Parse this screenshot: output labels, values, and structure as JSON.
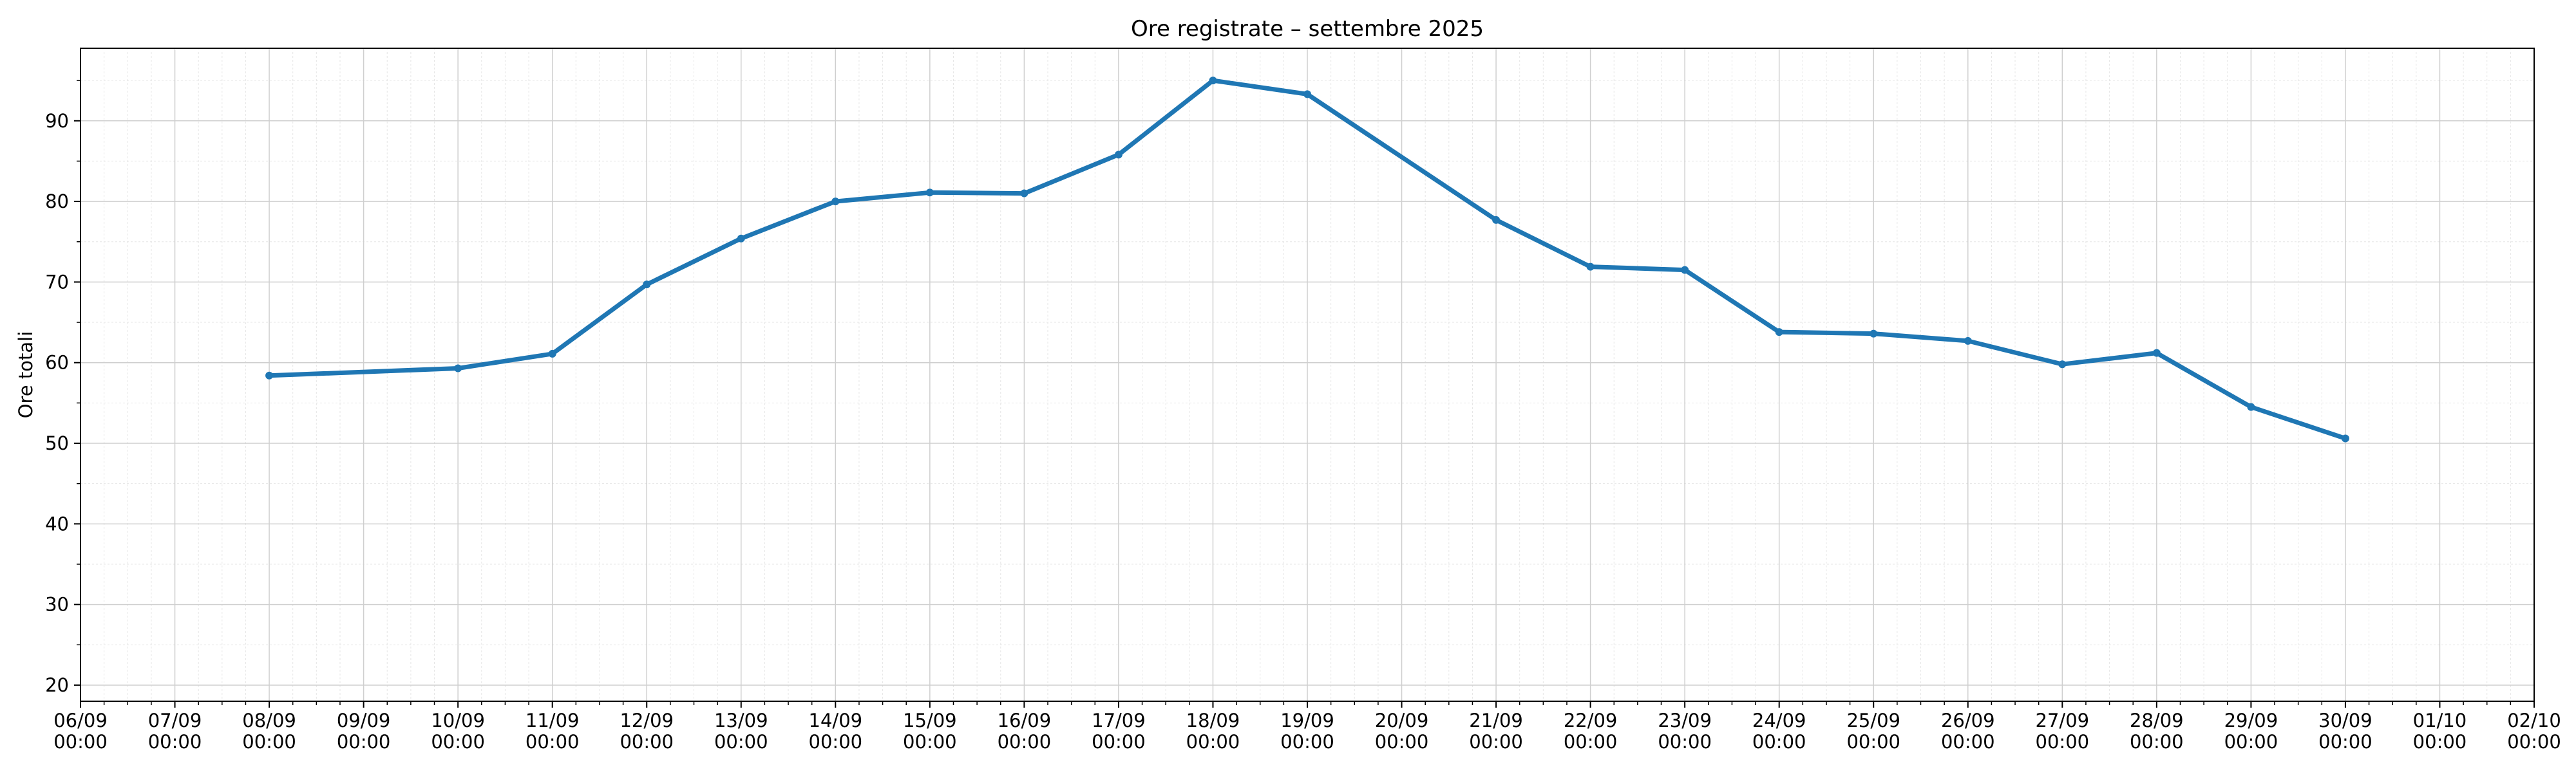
{
  "chart_data": {
    "type": "line",
    "title": "Ore registrate – settembre 2025",
    "xlabel": "",
    "ylabel": "Ore totali",
    "xlim": [
      "2025-09-06",
      "2025-10-02"
    ],
    "ylim": [
      18,
      99
    ],
    "grid": true,
    "minor_grid": true,
    "x_tick_labels": [
      "06/09\n00:00",
      "07/09\n00:00",
      "08/09\n00:00",
      "09/09\n00:00",
      "10/09\n00:00",
      "11/09\n00:00",
      "12/09\n00:00",
      "13/09\n00:00",
      "14/09\n00:00",
      "15/09\n00:00",
      "16/09\n00:00",
      "17/09\n00:00",
      "18/09\n00:00",
      "19/09\n00:00",
      "20/09\n00:00",
      "21/09\n00:00",
      "22/09\n00:00",
      "23/09\n00:00",
      "24/09\n00:00",
      "25/09\n00:00",
      "26/09\n00:00",
      "27/09\n00:00",
      "28/09\n00:00",
      "29/09\n00:00",
      "30/09\n00:00",
      "01/10\n00:00",
      "02/10\n00:00"
    ],
    "y_ticks": [
      20,
      30,
      40,
      50,
      60,
      70,
      80,
      90
    ],
    "series": [
      {
        "color": "#1f77b4",
        "x": [
          "2025-09-08",
          "2025-09-10",
          "2025-09-11",
          "2025-09-12",
          "2025-09-13",
          "2025-09-14",
          "2025-09-15",
          "2025-09-16",
          "2025-09-17",
          "2025-09-18",
          "2025-09-19",
          "2025-09-21",
          "2025-09-22",
          "2025-09-23",
          "2025-09-24",
          "2025-09-25",
          "2025-09-26",
          "2025-09-27",
          "2025-09-28",
          "2025-09-29",
          "2025-09-30"
        ],
        "y": [
          58.4,
          59.3,
          61.1,
          69.7,
          75.4,
          80.0,
          81.1,
          81.0,
          85.8,
          95.0,
          93.3,
          77.7,
          71.9,
          71.5,
          63.8,
          63.6,
          62.7,
          59.8,
          61.2,
          54.5,
          50.6
        ]
      }
    ]
  }
}
